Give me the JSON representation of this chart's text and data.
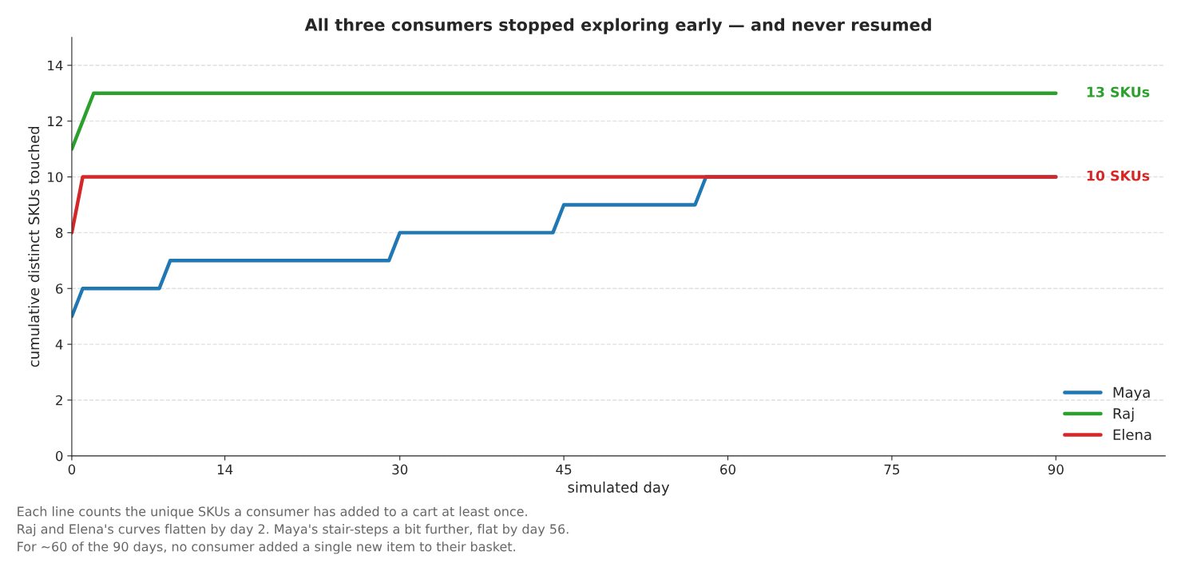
{
  "chart_data": {
    "type": "line",
    "title": "All three consumers stopped exploring early — and never resumed",
    "xlabel": "simulated day",
    "ylabel": "cumulative distinct SKUs touched",
    "xlim": [
      0,
      100
    ],
    "xticks": [
      0,
      14,
      30,
      45,
      60,
      75,
      90
    ],
    "ylim": [
      0,
      15
    ],
    "yticks": [
      0,
      2,
      4,
      6,
      8,
      10,
      12,
      14
    ],
    "grid": "y",
    "legend": "bottom right",
    "line_style": "solid",
    "marker": "none",
    "series": [
      {
        "name": "Maya",
        "color": "#1f77b4",
        "x": [
          0,
          1,
          8,
          9,
          29,
          30,
          44,
          45,
          57,
          58,
          90
        ],
        "values": [
          5,
          6,
          6,
          7,
          7,
          8,
          8,
          9,
          9,
          10,
          10
        ]
      },
      {
        "name": "Raj",
        "color": "#2ca02c",
        "x": [
          0,
          2,
          90
        ],
        "values": [
          11,
          13,
          13
        ]
      },
      {
        "name": "Elena",
        "color": "#d62728",
        "x": [
          0,
          1,
          90
        ],
        "values": [
          8,
          10,
          10
        ]
      }
    ],
    "annotations": [
      {
        "text": "13 SKUs",
        "x": 90,
        "y": 13
      },
      {
        "text": "10 SKUs",
        "x": 90,
        "y": 10
      },
      "Each line counts the unique SKUs a consumer has added to a cart at least once.",
      "Raj and Elena's curves flatten by day 2. Maya's stair-steps a bit further, flat by day 56.",
      "For ~60 of the 90 days, no consumer added a single new item to their basket."
    ]
  }
}
